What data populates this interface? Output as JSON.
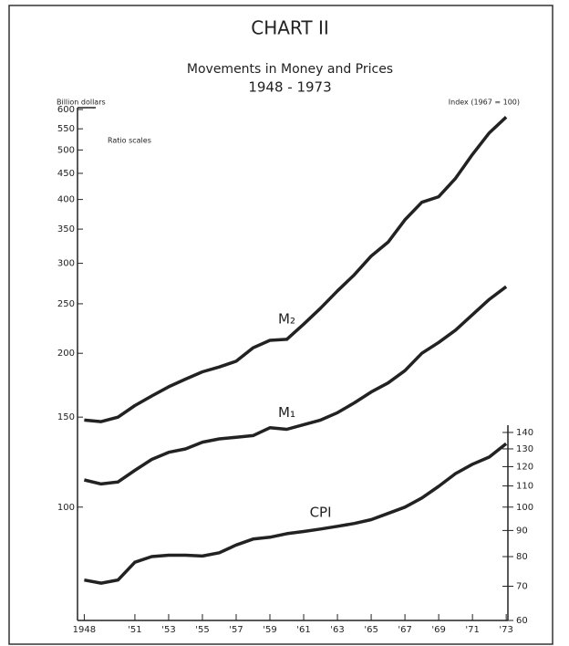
{
  "chart_data": {
    "type": "line",
    "title": "CHART II",
    "subtitle": "Movements in Money and Prices",
    "period": "1948 - 1973",
    "ylabel": "Billion dollars",
    "y2label": "Index (1967 = 100)",
    "annotation": "Ratio scales",
    "log_scale": true,
    "x": [
      1948,
      1949,
      1950,
      1951,
      1952,
      1953,
      1954,
      1955,
      1956,
      1957,
      1958,
      1959,
      1960,
      1961,
      1962,
      1963,
      1964,
      1965,
      1966,
      1967,
      1968,
      1969,
      1970,
      1971,
      1972,
      1973
    ],
    "xlim": [
      1947.6,
      1973.1
    ],
    "xticks": [
      {
        "value": 1948,
        "label": "1948"
      },
      {
        "value": 1951,
        "label": "'51"
      },
      {
        "value": 1953,
        "label": "'53"
      },
      {
        "value": 1955,
        "label": "'55"
      },
      {
        "value": 1957,
        "label": "'57"
      },
      {
        "value": 1959,
        "label": "'59"
      },
      {
        "value": 1961,
        "label": "'61"
      },
      {
        "value": 1963,
        "label": "'63"
      },
      {
        "value": 1965,
        "label": "'65"
      },
      {
        "value": 1967,
        "label": "'67"
      },
      {
        "value": 1969,
        "label": "'69"
      },
      {
        "value": 1971,
        "label": "'71"
      },
      {
        "value": 1973,
        "label": "'73"
      }
    ],
    "ylim": [
      60,
      605
    ],
    "yticks": [
      100,
      150,
      200,
      250,
      300,
      350,
      400,
      450,
      500,
      550,
      600
    ],
    "y2lim": [
      60,
      605
    ],
    "y2ticks": [
      60,
      70,
      80,
      90,
      100,
      110,
      120,
      130,
      140
    ],
    "series": [
      {
        "name": "M₂",
        "color": "#222222",
        "values": [
          148,
          147,
          150,
          158,
          165,
          172,
          178,
          184,
          188,
          193,
          205,
          212,
          213,
          228,
          245,
          265,
          285,
          310,
          330,
          365,
          395,
          405,
          440,
          490,
          540,
          580
        ]
      },
      {
        "name": "M₁",
        "color": "#222222",
        "values": [
          113,
          111,
          112,
          118,
          124,
          128,
          130,
          134,
          136,
          137,
          138,
          143,
          142,
          145,
          148,
          153,
          160,
          168,
          175,
          185,
          200,
          210,
          222,
          238,
          255,
          270
        ]
      },
      {
        "name": "CPI",
        "color": "#222222",
        "axis": "y2",
        "values": [
          72,
          71,
          72,
          78,
          80,
          80.5,
          80.5,
          80.2,
          81.4,
          84.3,
          86.6,
          87.3,
          88.7,
          89.6,
          90.6,
          91.7,
          92.9,
          94.5,
          97.2,
          100,
          104.2,
          109.8,
          116.3,
          121.3,
          125.3,
          133.1
        ]
      }
    ]
  }
}
